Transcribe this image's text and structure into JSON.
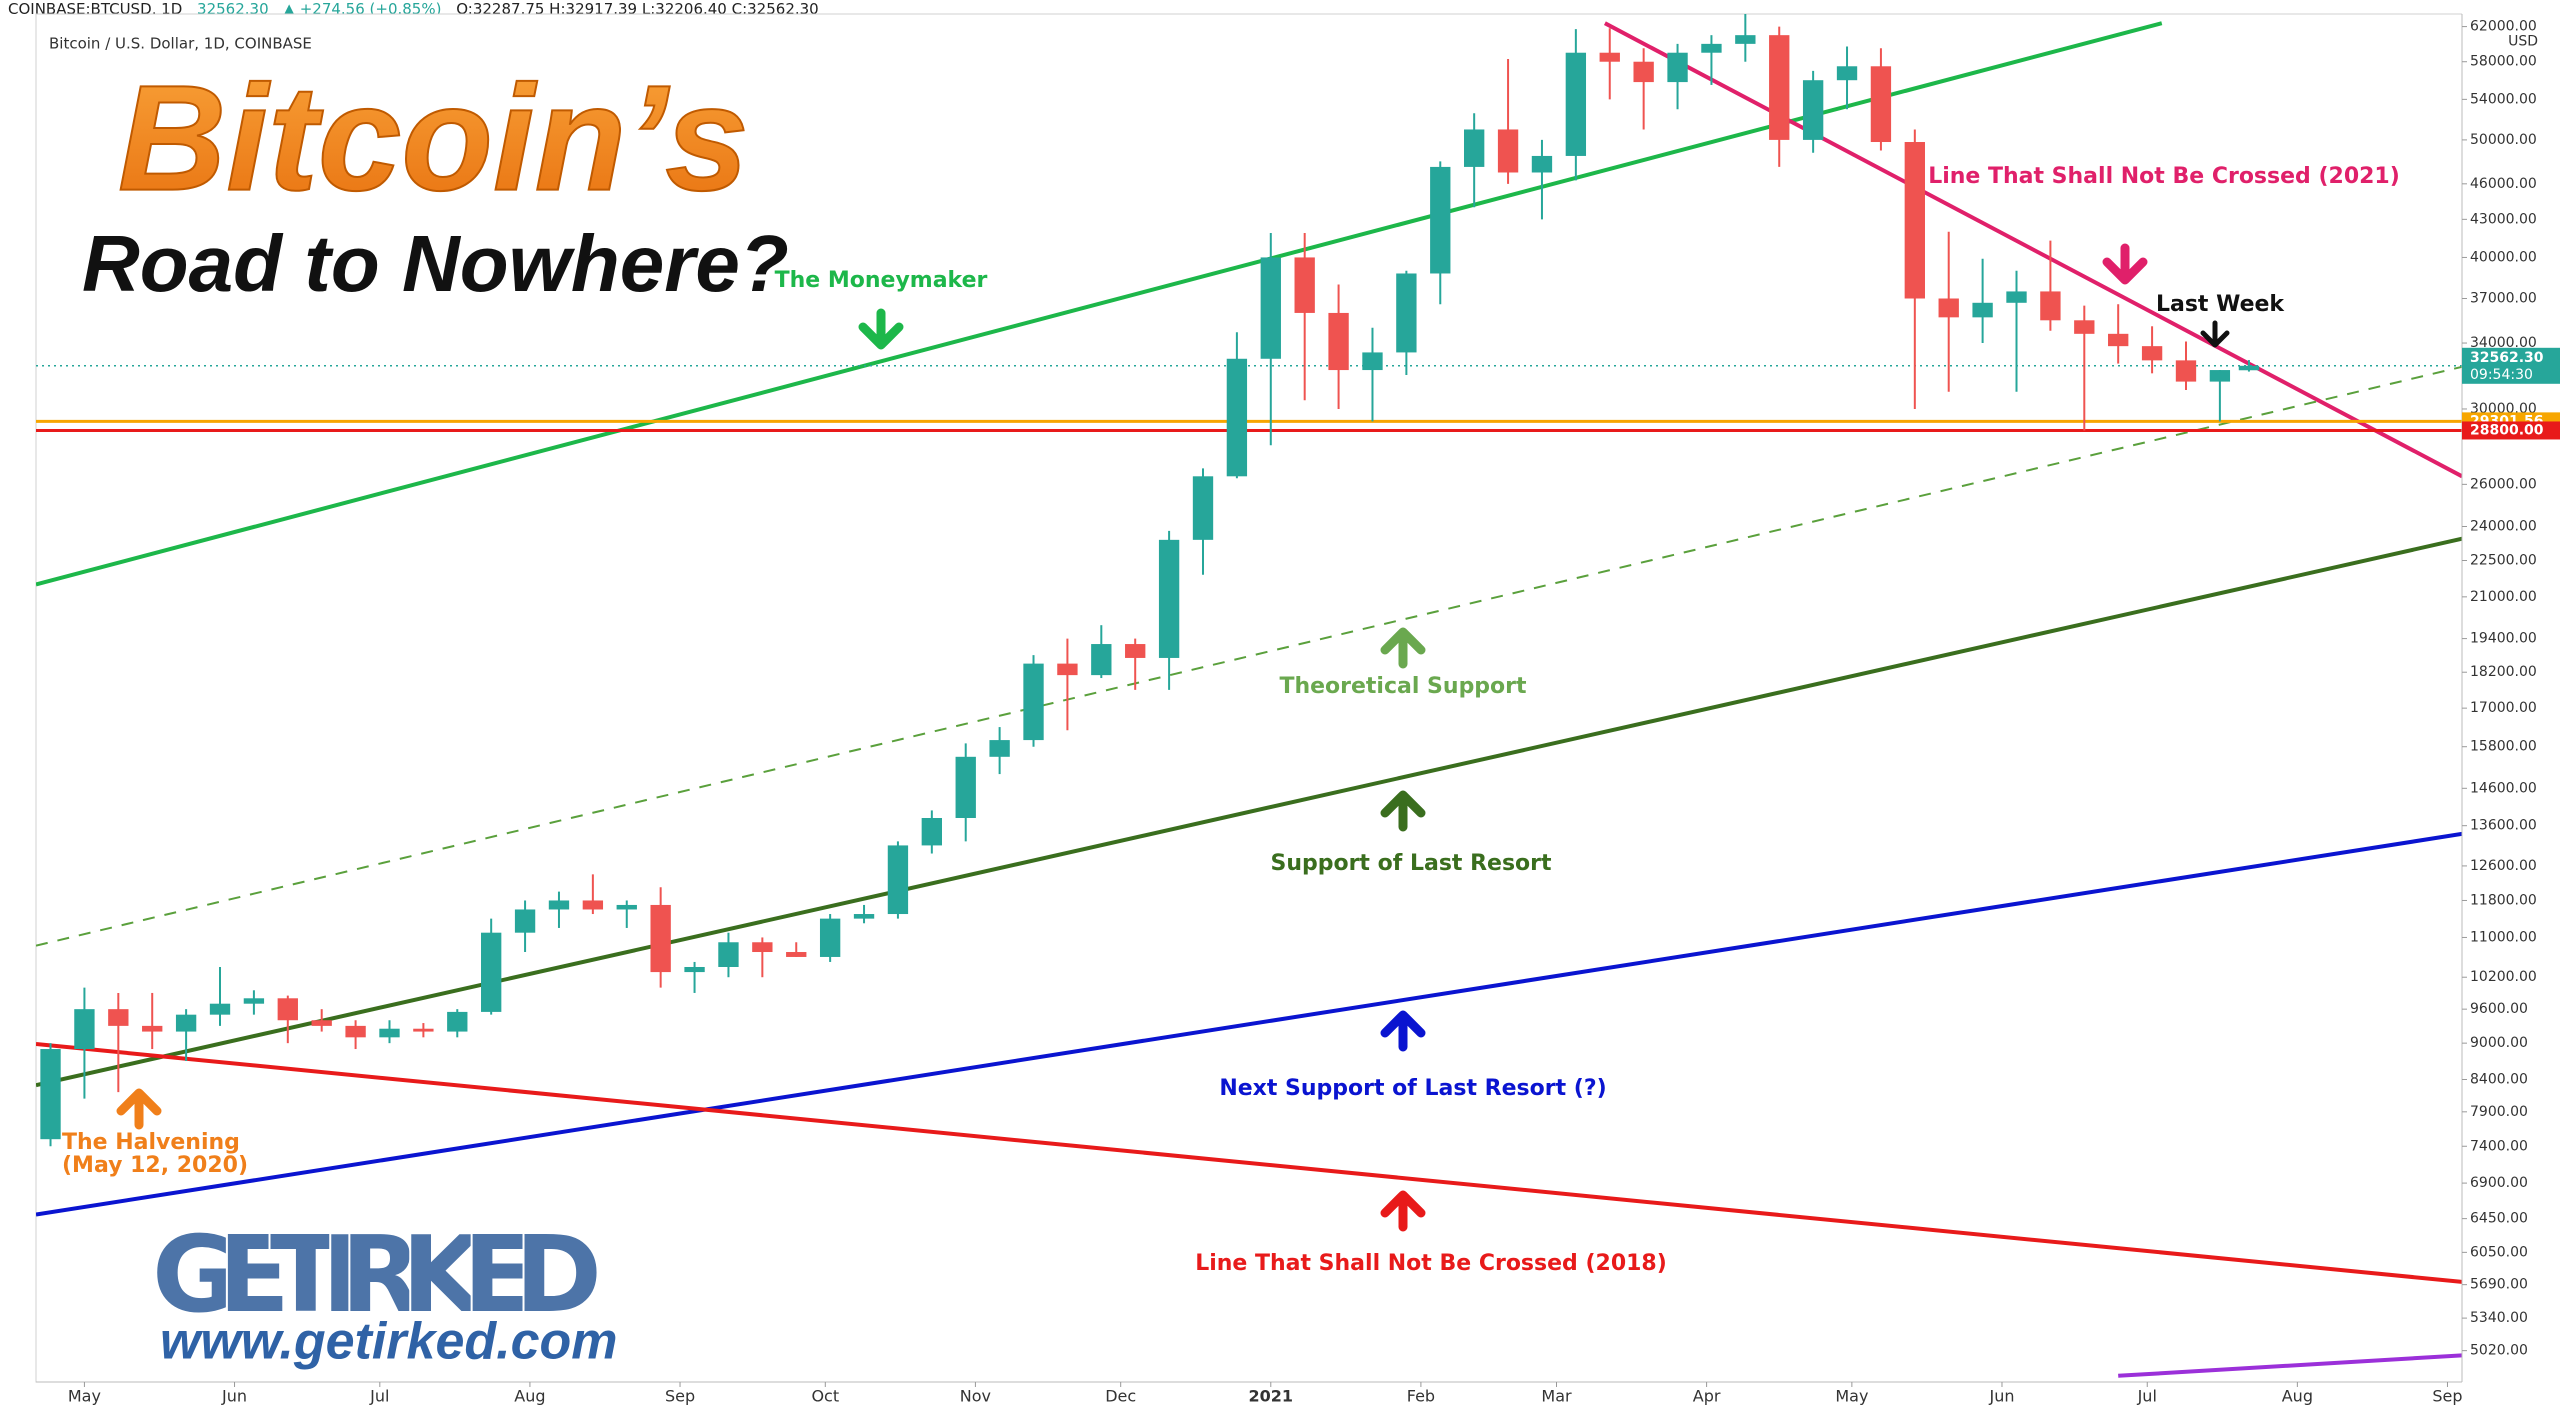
{
  "chart_data": {
    "type": "candlestick",
    "header": {
      "symbol": "COINBASE:BTCUSD, 1D",
      "price": "32562.30",
      "change": "▲ +274.56 (+0.85%)",
      "ohlc": "O:32287.75 H:32917.39 L:32206.40 C:32562.30"
    },
    "subtitle": "Bitcoin / U.S. Dollar, 1D, COINBASE",
    "title": "Bitcoin’s",
    "title_line2": "Road to Nowhere?",
    "logo": "GETIRKED",
    "logo_url": "www.getirked.com",
    "y_scale": "log",
    "grid": false,
    "up_color": "#26a69a",
    "down_color": "#ef5350",
    "xlim": [
      -10,
      491
    ],
    "ylim": [
      4730,
      63500
    ],
    "xticks": [
      {
        "value": 0,
        "label": "May"
      },
      {
        "value": 31,
        "label": "Jun"
      },
      {
        "value": 61,
        "label": "Jul"
      },
      {
        "value": 92,
        "label": "Aug"
      },
      {
        "value": 123,
        "label": "Sep"
      },
      {
        "value": 153,
        "label": "Oct"
      },
      {
        "value": 184,
        "label": "Nov"
      },
      {
        "value": 214,
        "label": "Dec"
      },
      {
        "value": 245,
        "label": "2021"
      },
      {
        "value": 276,
        "label": "Feb"
      },
      {
        "value": 304,
        "label": "Mar"
      },
      {
        "value": 335,
        "label": "Apr"
      },
      {
        "value": 365,
        "label": "May"
      },
      {
        "value": 396,
        "label": "Jun"
      },
      {
        "value": 426,
        "label": "Jul"
      },
      {
        "value": 457,
        "label": "Aug"
      },
      {
        "value": 488,
        "label": "Sep"
      }
    ],
    "y_unit": "USD",
    "yticks": [
      {
        "value": 62000,
        "label": "62000.00"
      },
      {
        "value": 58000,
        "label": "58000.00"
      },
      {
        "value": 54000,
        "label": "54000.00"
      },
      {
        "value": 50000,
        "label": "50000.00"
      },
      {
        "value": 46000,
        "label": "46000.00"
      },
      {
        "value": 43000,
        "label": "43000.00"
      },
      {
        "value": 40000,
        "label": "40000.00"
      },
      {
        "value": 37000,
        "label": "37000.00"
      },
      {
        "value": 34000,
        "label": "34000.00"
      },
      {
        "value": 30000,
        "label": "30000.00"
      },
      {
        "value": 26000,
        "label": "26000.00"
      },
      {
        "value": 24000,
        "label": "24000.00"
      },
      {
        "value": 22500,
        "label": "22500.00"
      },
      {
        "value": 21000,
        "label": "21000.00"
      },
      {
        "value": 19400,
        "label": "19400.00"
      },
      {
        "value": 18200,
        "label": "18200.00"
      },
      {
        "value": 17000,
        "label": "17000.00"
      },
      {
        "value": 15800,
        "label": "15800.00"
      },
      {
        "value": 14600,
        "label": "14600.00"
      },
      {
        "value": 13600,
        "label": "13600.00"
      },
      {
        "value": 12600,
        "label": "12600.00"
      },
      {
        "value": 11800,
        "label": "11800.00"
      },
      {
        "value": 11000,
        "label": "11000.00"
      },
      {
        "value": 10200,
        "label": "10200.00"
      },
      {
        "value": 9600,
        "label": "9600.00"
      },
      {
        "value": 9000,
        "label": "9000.00"
      },
      {
        "value": 8400,
        "label": "8400.00"
      },
      {
        "value": 7900,
        "label": "7900.00"
      },
      {
        "value": 7400,
        "label": "7400.00"
      },
      {
        "value": 6900,
        "label": "6900.00"
      },
      {
        "value": 6450,
        "label": "6450.00"
      },
      {
        "value": 6050,
        "label": "6050.00"
      },
      {
        "value": 5690,
        "label": "5690.00"
      },
      {
        "value": 5340,
        "label": "5340.00"
      },
      {
        "value": 5020,
        "label": "5020.00"
      }
    ],
    "x": [
      -7,
      0,
      7,
      14,
      21,
      28,
      35,
      42,
      49,
      56,
      63,
      70,
      77,
      84,
      91,
      98,
      105,
      112,
      119,
      126,
      133,
      140,
      147,
      154,
      161,
      168,
      175,
      182,
      189,
      196,
      203,
      210,
      217,
      224,
      231,
      238,
      245,
      252,
      259,
      266,
      273,
      280,
      287,
      294,
      301,
      308,
      315,
      322,
      329,
      336,
      343,
      350,
      357,
      364,
      371,
      378,
      385,
      392,
      399,
      406,
      413,
      420,
      427,
      434,
      441,
      447
    ],
    "open": [
      7500,
      8900,
      9600,
      9300,
      9200,
      9500,
      9700,
      9800,
      9400,
      9300,
      9100,
      9250,
      9200,
      9550,
      11100,
      11600,
      11800,
      11600,
      11700,
      10300,
      10400,
      10900,
      10700,
      10600,
      11400,
      11500,
      13100,
      13800,
      15500,
      16000,
      18500,
      18100,
      19200,
      18700,
      23400,
      26400,
      33000,
      40000,
      36000,
      32300,
      33400,
      38800,
      47500,
      51000,
      47000,
      48500,
      59000,
      58000,
      55800,
      59000,
      60000,
      61000,
      50000,
      56000,
      57500,
      49800,
      37000,
      35700,
      36700,
      37500,
      35500,
      34600,
      33800,
      32900,
      31600,
      32287.75
    ],
    "high": [
      9000,
      10000,
      9900,
      9900,
      9600,
      10400,
      9950,
      9850,
      9600,
      9400,
      9400,
      9350,
      9600,
      11400,
      11800,
      12000,
      12400,
      11800,
      12100,
      10500,
      11100,
      11000,
      10900,
      11500,
      11700,
      13200,
      14000,
      15900,
      16400,
      18800,
      19400,
      19900,
      19400,
      23800,
      26800,
      34700,
      41900,
      41900,
      38000,
      35000,
      39000,
      48000,
      52600,
      58300,
      50000,
      61700,
      61800,
      59500,
      60000,
      61000,
      64800,
      62000,
      57000,
      59700,
      59500,
      51000,
      42000,
      39900,
      39000,
      41300,
      36500,
      36600,
      35100,
      34100,
      32300,
      32917.39
    ],
    "low": [
      7400,
      8100,
      8200,
      8900,
      8700,
      9300,
      9500,
      9000,
      9200,
      8900,
      9000,
      9100,
      9100,
      9500,
      10700,
      11200,
      11500,
      11200,
      10000,
      9900,
      10200,
      10200,
      10600,
      10500,
      11300,
      11400,
      12900,
      13200,
      15000,
      15800,
      16300,
      18000,
      17600,
      17600,
      21900,
      26300,
      28000,
      30500,
      30000,
      29300,
      32000,
      36600,
      44000,
      46000,
      43000,
      46300,
      54000,
      51000,
      53000,
      55500,
      58000,
      47500,
      48800,
      53000,
      49000,
      30000,
      31000,
      34000,
      31000,
      34800,
      28800,
      32700,
      32100,
      31100,
      29300,
      32206.4
    ],
    "close": [
      8900,
      9600,
      9300,
      9200,
      9500,
      9700,
      9800,
      9400,
      9300,
      9100,
      9250,
      9200,
      9550,
      11100,
      11600,
      11800,
      11600,
      11700,
      10300,
      10400,
      10900,
      10700,
      10600,
      11400,
      11500,
      13100,
      13800,
      15500,
      16000,
      18500,
      18100,
      19200,
      18700,
      23400,
      26400,
      33000,
      40000,
      36000,
      32300,
      33400,
      38800,
      47500,
      51000,
      47000,
      48500,
      59000,
      58000,
      55800,
      59000,
      60000,
      61000,
      50000,
      56000,
      57500,
      49800,
      37000,
      35700,
      36700,
      37500,
      35500,
      34600,
      33800,
      32900,
      31600,
      32300,
      32562.3
    ],
    "lines": [
      {
        "x": [
          -10,
          429
        ],
        "y": [
          21500,
          62400
        ],
        "color": "#1db74a",
        "width": 4
      },
      {
        "x": [
          314,
          491
        ],
        "y": [
          62400,
          26400
        ],
        "color": "#e0206a",
        "width": 4
      },
      {
        "x": [
          -10,
          491
        ],
        "y": [
          10830,
          32500
        ],
        "color": "#5aa03c",
        "width": 2,
        "dash": true
      },
      {
        "x": [
          -10,
          491
        ],
        "y": [
          8310,
          23450
        ],
        "color": "#3a6e1e",
        "width": 4
      },
      {
        "x": [
          -10,
          491
        ],
        "y": [
          6500,
          13390
        ],
        "color": "#0a14d0",
        "width": 4
      },
      {
        "x": [
          -10,
          491
        ],
        "y": [
          8985,
          5720
        ],
        "color": "#e81a1a",
        "width": 4
      },
      {
        "x": [
          420,
          491
        ],
        "y": [
          4786,
          4975
        ],
        "color": "#9b30d9",
        "width": 4
      }
    ],
    "hlines": [
      {
        "value": 32562.3,
        "label": "32562.30",
        "sub": "09:54:30",
        "color": "#26a69a",
        "dotted": true
      },
      {
        "value": 29301.56,
        "label": "29301.56",
        "color": "#f7a600"
      },
      {
        "value": 28800,
        "label": "28800.00",
        "color": "#e81a1a"
      }
    ],
    "annotations": [
      {
        "text": "The Moneymaker",
        "color": "#1db74a"
      },
      {
        "text": "Line That Shall Not Be Crossed (2021)",
        "color": "#e0206a"
      },
      {
        "text": "Last Week",
        "color": "#111111"
      },
      {
        "text": "Theoretical Support",
        "color": "#6aa84f"
      },
      {
        "text": "Support of Last Resort",
        "color": "#3a6e1e"
      },
      {
        "text": "Next Support of Last Resort (?)",
        "color": "#0a14d0"
      },
      {
        "text": "Line That Shall Not Be Crossed (2018)",
        "color": "#e81a1a"
      },
      {
        "text": "The Halvening",
        "color": "#f07f1a"
      },
      {
        "text": "(May 12, 2020)",
        "color": "#f07f1a"
      }
    ]
  }
}
